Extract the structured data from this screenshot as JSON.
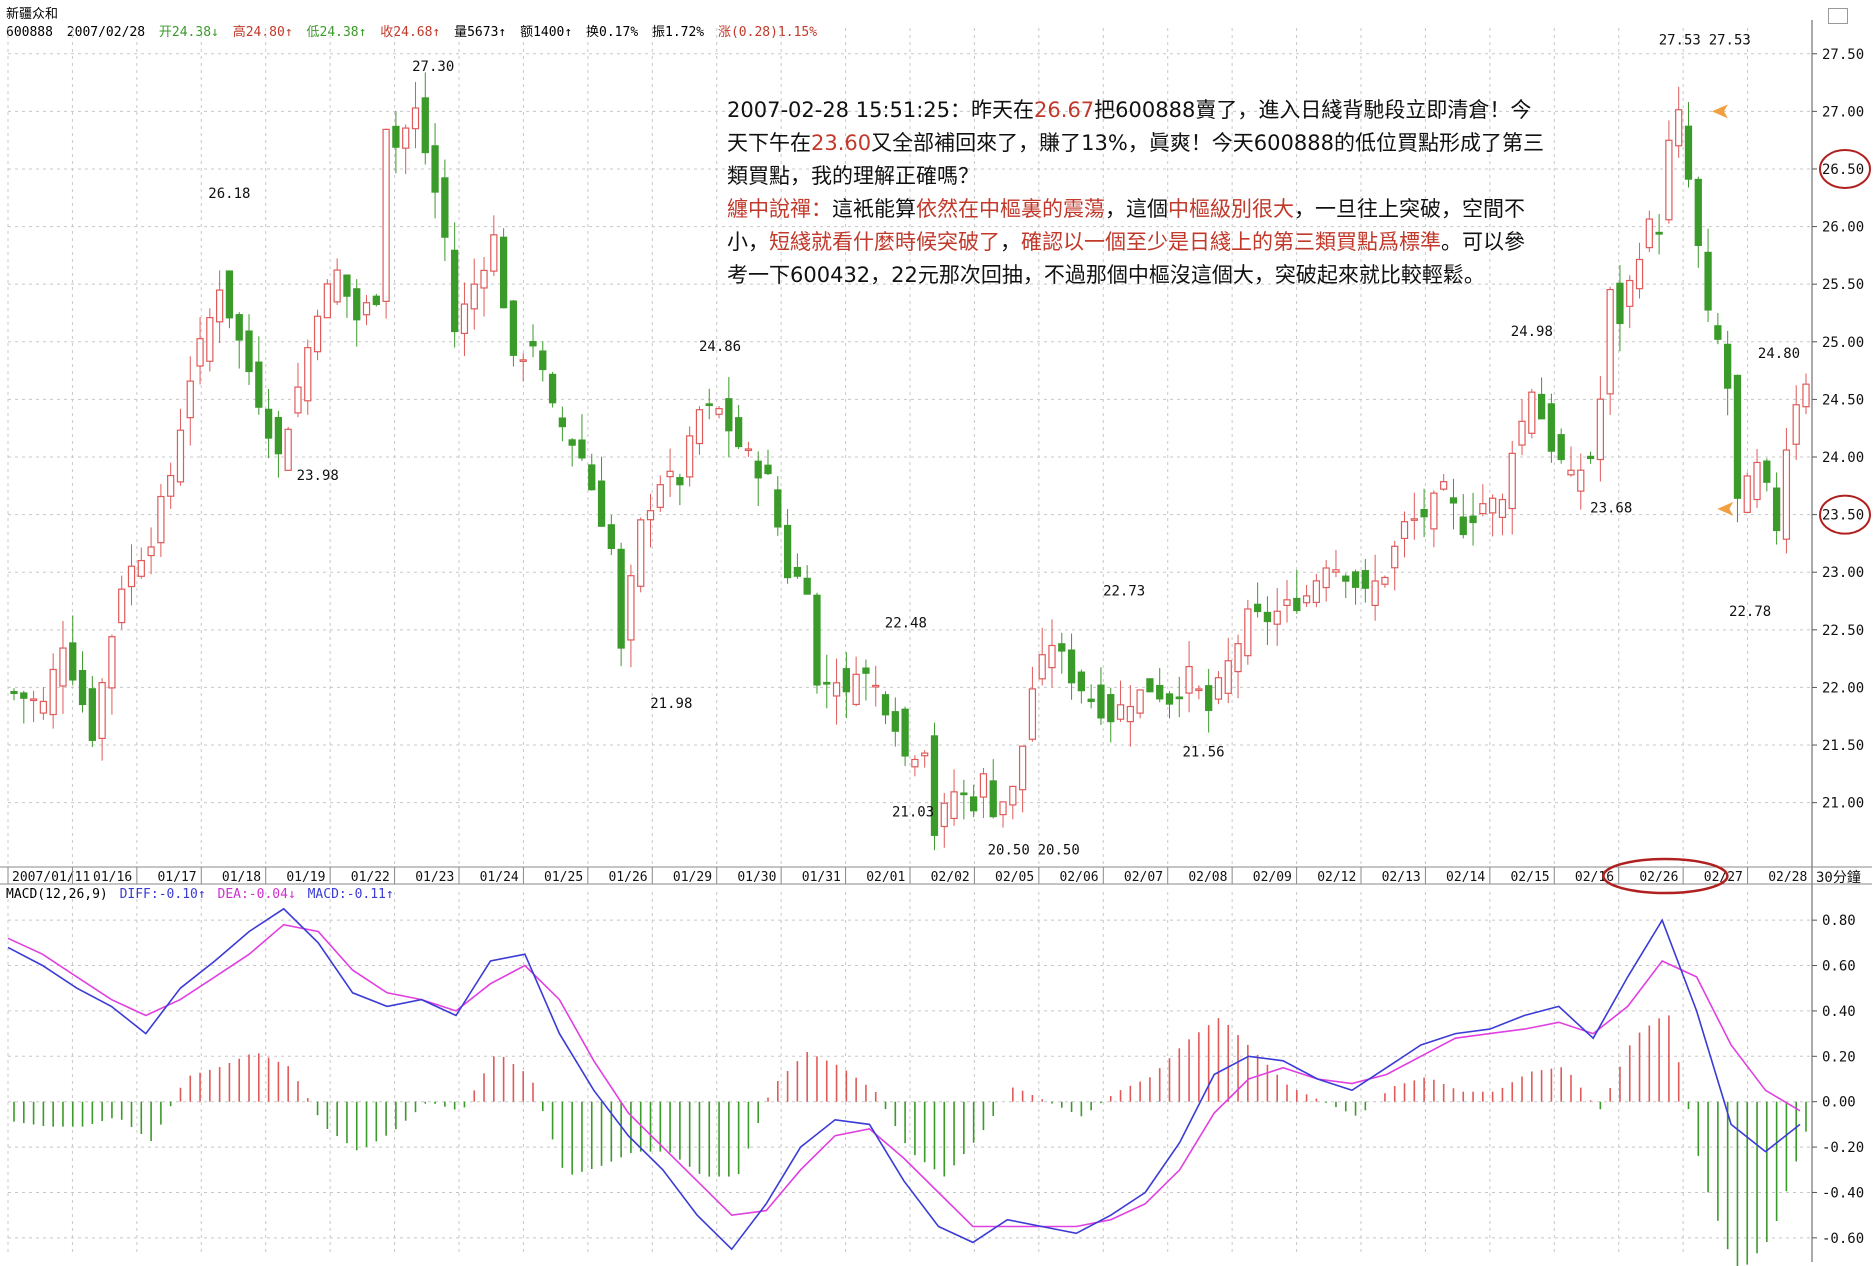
{
  "header": {
    "name": "新疆众和",
    "code": "600888",
    "date": "2007/02/28",
    "open": "开24.38↓",
    "high": "高24.80↑",
    "low": "低24.38↑",
    "close": "收24.68↑",
    "volume": "量5673↑",
    "amount": "额1400↑",
    "turnover": "换0.17%",
    "amplitude": "振1.72%",
    "change": "涨(0.28)1.15%"
  },
  "annotation": {
    "lines": [
      [
        {
          "t": "2007-02-28 15:51:25：昨天在",
          "c": ""
        },
        {
          "t": "26.67",
          "c": "red"
        },
        {
          "t": "把600888賣了，進入日綫背馳段立即清倉！今",
          "c": ""
        }
      ],
      [
        {
          "t": "天下午在",
          "c": ""
        },
        {
          "t": "23.60",
          "c": "red"
        },
        {
          "t": "又全部補回來了，賺了13%，眞爽！今天600888的低位買點形成了第三",
          "c": ""
        }
      ],
      [
        {
          "t": "類買點，我的理解正確嗎？",
          "c": ""
        }
      ],
      [
        {
          "t": "纏中說禪：",
          "c": "red"
        },
        {
          "t": "這衹能算",
          "c": ""
        },
        {
          "t": "依然在中樞裏的震蕩",
          "c": "red"
        },
        {
          "t": "，這個",
          "c": ""
        },
        {
          "t": "中樞級別很大",
          "c": "red"
        },
        {
          "t": "，一旦往上突破，空間不",
          "c": ""
        }
      ],
      [
        {
          "t": "小，",
          "c": ""
        },
        {
          "t": "短綫就看什麼時候突破了",
          "c": "red"
        },
        {
          "t": "，",
          "c": ""
        },
        {
          "t": "確認以一個至少是日綫上的第三類買點爲標準",
          "c": "red"
        },
        {
          "t": "。可以參",
          "c": ""
        }
      ],
      [
        {
          "t": "考一下600432，22元那次回抽，不過那個中樞沒這個大，突破起來就比較輕鬆。",
          "c": ""
        }
      ]
    ]
  },
  "macd_legend": {
    "label": "MACD(12,26,9)",
    "diff": "DIFF:-0.10↑",
    "dea": "DEA:-0.04↓",
    "macd": "MACD:-0.11↑"
  },
  "colors": {
    "up": "#e05a5a",
    "down": "#3a9a2a",
    "diff": "#3b3bd6",
    "dea": "#e040e0",
    "grid": "#c8c8c8",
    "circle": "#b02020",
    "arrow": "#f0a040"
  },
  "period_label": "30分鐘",
  "chart_data": [
    {
      "type": "candlestick",
      "title": "",
      "x_dates": [
        "2007/01/11",
        "01/16",
        "01/17",
        "01/18",
        "01/19",
        "01/22",
        "01/23",
        "01/24",
        "01/25",
        "01/26",
        "01/29",
        "01/30",
        "01/31",
        "02/01",
        "02/02",
        "02/05",
        "02/06",
        "02/07",
        "02/08",
        "02/09",
        "02/12",
        "02/13",
        "02/14",
        "02/15",
        "02/16",
        "02/26",
        "02/27",
        "02/28"
      ],
      "y_ticks": [
        "27.50",
        "27.00",
        "26.50",
        "26.00",
        "25.50",
        "25.00",
        "24.50",
        "24.00",
        "23.50",
        "23.00",
        "22.50",
        "22.00",
        "21.50",
        "21.00"
      ],
      "ylim": [
        20.45,
        27.55
      ],
      "circled_ticks": [
        "26.50",
        "23.50"
      ],
      "circled_dates": [
        "02/27",
        "02/28"
      ],
      "price_labels": [
        "27.30",
        "26.18",
        "23.98",
        "24.86",
        "21.98",
        "22.48",
        "21.03",
        "20.50",
        "20.50",
        "22.73",
        "21.56",
        "24.98",
        "23.68",
        "27.53",
        "27.53",
        "24.80",
        "22.78"
      ],
      "close_path": [
        [
          0,
          21.95
        ],
        [
          3,
          21.85
        ],
        [
          5,
          22.4
        ],
        [
          8,
          21.6
        ],
        [
          11,
          22.9
        ],
        [
          14,
          23.3
        ],
        [
          16,
          23.85
        ],
        [
          18,
          24.7
        ],
        [
          20,
          25.2
        ],
        [
          21,
          25.5
        ],
        [
          23,
          25.0
        ],
        [
          25,
          24.5
        ],
        [
          27,
          24.0
        ],
        [
          29,
          24.6
        ],
        [
          31,
          25.3
        ],
        [
          33,
          25.6
        ],
        [
          35,
          25.2
        ],
        [
          37,
          25.4
        ],
        [
          38,
          26.9
        ],
        [
          39,
          26.7
        ],
        [
          41,
          27.0
        ],
        [
          43,
          26.3
        ],
        [
          44,
          25.9
        ],
        [
          45,
          25.1
        ],
        [
          47,
          25.5
        ],
        [
          49,
          25.9
        ],
        [
          51,
          24.8
        ],
        [
          53,
          25.0
        ],
        [
          55,
          24.4
        ],
        [
          58,
          24.0
        ],
        [
          61,
          23.2
        ],
        [
          62,
          22.3
        ],
        [
          63,
          22.9
        ],
        [
          64,
          23.4
        ],
        [
          66,
          23.8
        ],
        [
          68,
          23.8
        ],
        [
          70,
          24.4
        ],
        [
          72,
          24.4
        ],
        [
          74,
          24.1
        ],
        [
          77,
          23.8
        ],
        [
          79,
          23.0
        ],
        [
          81,
          22.9
        ],
        [
          82,
          22.0
        ],
        [
          84,
          22.1
        ],
        [
          85,
          21.9
        ],
        [
          86,
          22.2
        ],
        [
          88,
          22.0
        ],
        [
          90,
          21.7
        ],
        [
          91,
          21.4
        ],
        [
          93,
          21.5
        ],
        [
          94,
          20.75
        ],
        [
          96,
          21.1
        ],
        [
          98,
          21.0
        ],
        [
          99,
          21.2
        ],
        [
          100,
          20.95
        ],
        [
          102,
          21.1
        ],
        [
          103,
          21.5
        ],
        [
          104,
          22.0
        ],
        [
          106,
          22.4
        ],
        [
          108,
          22.1
        ],
        [
          110,
          21.9
        ],
        [
          112,
          21.75
        ],
        [
          114,
          21.9
        ],
        [
          116,
          22.0
        ],
        [
          118,
          21.9
        ],
        [
          120,
          22.1
        ],
        [
          122,
          21.8
        ],
        [
          124,
          22.2
        ],
        [
          126,
          22.6
        ],
        [
          128,
          22.6
        ],
        [
          130,
          22.7
        ],
        [
          132,
          22.8
        ],
        [
          134,
          23.1
        ],
        [
          136,
          23.0
        ],
        [
          138,
          22.8
        ],
        [
          140,
          23.0
        ],
        [
          142,
          23.4
        ],
        [
          144,
          23.5
        ],
        [
          146,
          23.7
        ],
        [
          148,
          23.4
        ],
        [
          150,
          23.6
        ],
        [
          152,
          23.6
        ],
        [
          153,
          24.1
        ],
        [
          154,
          24.3
        ],
        [
          155,
          24.6
        ],
        [
          157,
          24.1
        ],
        [
          159,
          23.8
        ],
        [
          161,
          24.0
        ],
        [
          162,
          24.5
        ],
        [
          163,
          25.4
        ],
        [
          164,
          25.2
        ],
        [
          166,
          25.8
        ],
        [
          167,
          26.0
        ],
        [
          168,
          26.0
        ],
        [
          169,
          26.7
        ],
        [
          170,
          26.95
        ],
        [
          171,
          26.4
        ],
        [
          172,
          25.8
        ],
        [
          173,
          25.2
        ],
        [
          174,
          25.0
        ],
        [
          175,
          24.6
        ],
        [
          176,
          23.6
        ],
        [
          178,
          23.9
        ],
        [
          179,
          23.7
        ],
        [
          180,
          23.4
        ],
        [
          181,
          24.1
        ],
        [
          182,
          24.5
        ],
        [
          183,
          24.68
        ]
      ],
      "volume_note": "",
      "candle_count": 184
    },
    {
      "type": "macd",
      "series": [
        {
          "name": "DIFF",
          "values": [
            0.68,
            0.6,
            0.5,
            0.42,
            0.3,
            0.5,
            0.62,
            0.75,
            0.85,
            0.7,
            0.48,
            0.42,
            0.45,
            0.38,
            0.62,
            0.65,
            0.3,
            0.05,
            -0.15,
            -0.3,
            -0.5,
            -0.65,
            -0.45,
            -0.2,
            -0.08,
            -0.1,
            -0.35,
            -0.55,
            -0.62,
            -0.52,
            -0.55,
            -0.58,
            -0.5,
            -0.4,
            -0.18,
            0.12,
            0.2,
            0.18,
            0.1,
            0.05,
            0.15,
            0.25,
            0.3,
            0.32,
            0.38,
            0.42,
            0.28,
            0.55,
            0.8,
            0.4,
            -0.1,
            -0.22,
            -0.1
          ]
        },
        {
          "name": "DEA",
          "values": [
            0.72,
            0.65,
            0.55,
            0.45,
            0.38,
            0.45,
            0.55,
            0.65,
            0.78,
            0.75,
            0.58,
            0.48,
            0.45,
            0.4,
            0.52,
            0.6,
            0.45,
            0.18,
            -0.05,
            -0.2,
            -0.35,
            -0.5,
            -0.48,
            -0.3,
            -0.15,
            -0.12,
            -0.25,
            -0.4,
            -0.55,
            -0.55,
            -0.55,
            -0.55,
            -0.52,
            -0.45,
            -0.3,
            -0.05,
            0.1,
            0.15,
            0.1,
            0.08,
            0.12,
            0.2,
            0.28,
            0.3,
            0.32,
            0.35,
            0.3,
            0.42,
            0.62,
            0.55,
            0.25,
            0.05,
            -0.04
          ]
        }
      ],
      "histogram_note": "MACD bars alternate red (positive) and green (negative)",
      "y_ticks": [
        "0.80",
        "0.60",
        "0.40",
        "0.20",
        "0.00",
        "-0.20",
        "-0.40",
        "-0.60"
      ],
      "ylim": [
        -0.68,
        0.88
      ]
    }
  ]
}
